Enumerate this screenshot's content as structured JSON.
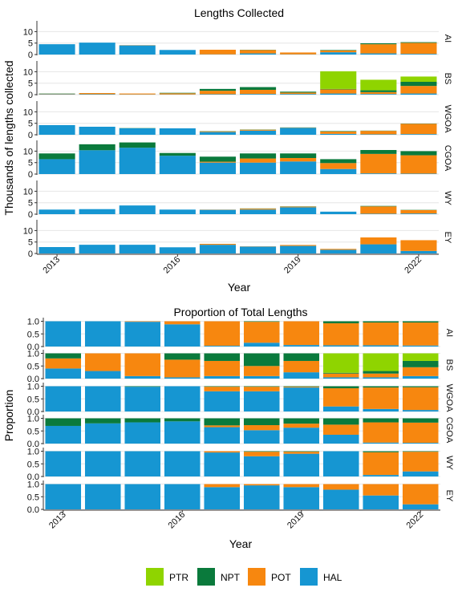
{
  "legend": {
    "items": [
      {
        "label": "PTR",
        "color": "#8fd400"
      },
      {
        "label": "NPT",
        "color": "#0a7a3c"
      },
      {
        "label": "POT",
        "color": "#f7870f"
      },
      {
        "label": "HAL",
        "color": "#1696d2"
      }
    ]
  },
  "chart_data": [
    {
      "type": "bar",
      "stacked": true,
      "title": "Lengths Collected",
      "ylabel": "Thousands of lengths collected",
      "xlabel": "Year",
      "years": [
        2013,
        2014,
        2015,
        2016,
        2017,
        2018,
        2019,
        2020,
        2021,
        2022
      ],
      "x_tick_labels": [
        "2013",
        "2016",
        "2019",
        "2022"
      ],
      "series_order": [
        "HAL",
        "POT",
        "NPT",
        "PTR"
      ],
      "facets": [
        {
          "name": "AI",
          "yticks": [
            0,
            5,
            10
          ],
          "ylim": [
            0,
            14
          ],
          "HAL": [
            4.5,
            5.2,
            4.0,
            2.0,
            0.1,
            0.5,
            0.1,
            1.0,
            0.5,
            0.3
          ],
          "POT": [
            0,
            0,
            0.1,
            0,
            2.0,
            1.5,
            0.8,
            0.8,
            4.0,
            4.8
          ],
          "NPT": [
            0,
            0,
            0,
            0,
            0,
            0.1,
            0,
            0.2,
            0.4,
            0.3
          ],
          "PTR": [
            0,
            0,
            0,
            0,
            0,
            0,
            0,
            0,
            0,
            0
          ]
        },
        {
          "name": "BS",
          "yticks": [
            0,
            5,
            10
          ],
          "ylim": [
            0,
            14
          ],
          "HAL": [
            0.2,
            0.2,
            0.1,
            0.1,
            0.2,
            0.3,
            0.3,
            0.5,
            0.3,
            0.5
          ],
          "POT": [
            0.2,
            0.5,
            0.4,
            0.5,
            1.5,
            1.8,
            0.6,
            1.8,
            0.8,
            3.3
          ],
          "NPT": [
            0.1,
            0,
            0,
            0.2,
            0.8,
            1.2,
            0.4,
            0.2,
            0.8,
            1.8
          ],
          "PTR": [
            0,
            0,
            0,
            0,
            0,
            0,
            0,
            7.7,
            4.6,
            2.3
          ]
        },
        {
          "name": "WGOA",
          "yticks": [
            0,
            5,
            10
          ],
          "ylim": [
            0,
            14
          ],
          "HAL": [
            4.2,
            3.5,
            2.8,
            2.8,
            1.2,
            1.8,
            3.0,
            0.4,
            0.2,
            0.3
          ],
          "POT": [
            0,
            0,
            0,
            0,
            0.3,
            0.4,
            0.1,
            1.0,
            1.5,
            4.5
          ],
          "NPT": [
            0,
            0,
            0.1,
            0,
            0.1,
            0.1,
            0.1,
            0.2,
            0.1,
            0.1
          ],
          "PTR": [
            0,
            0,
            0,
            0,
            0,
            0,
            0,
            0,
            0,
            0
          ]
        },
        {
          "name": "CGOA",
          "yticks": [
            0,
            5,
            10
          ],
          "ylim": [
            0,
            14
          ],
          "HAL": [
            6.5,
            10.4,
            11.5,
            8.0,
            5.0,
            5.0,
            5.5,
            2.2,
            0.3,
            0.2
          ],
          "POT": [
            0,
            0,
            0,
            0,
            0.4,
            1.8,
            1.5,
            2.6,
            8.5,
            8.0
          ],
          "NPT": [
            2.5,
            2.6,
            2.3,
            1.2,
            2.2,
            2.2,
            2.0,
            1.7,
            1.7,
            1.8
          ],
          "PTR": [
            0,
            0,
            0,
            0,
            0,
            0,
            0,
            0,
            0,
            0
          ]
        },
        {
          "name": "WY",
          "yticks": [
            0,
            5,
            10
          ],
          "ylim": [
            0,
            14
          ],
          "HAL": [
            2.0,
            2.2,
            3.8,
            2.0,
            1.9,
            2.0,
            3.0,
            1.1,
            0.2,
            0.3
          ],
          "POT": [
            0,
            0,
            0,
            0,
            0.1,
            0.4,
            0.3,
            0,
            3.2,
            1.5
          ],
          "NPT": [
            0,
            0,
            0,
            0,
            0,
            0.1,
            0.1,
            0,
            0.2,
            0.1
          ],
          "PTR": [
            0,
            0,
            0,
            0,
            0,
            0,
            0,
            0,
            0,
            0
          ]
        },
        {
          "name": "EY",
          "yticks": [
            0,
            5,
            10
          ],
          "ylim": [
            0,
            14
          ],
          "HAL": [
            2.8,
            3.8,
            3.8,
            2.7,
            3.8,
            3.0,
            3.3,
            1.6,
            4.0,
            1.1
          ],
          "POT": [
            0,
            0,
            0,
            0,
            0.4,
            0.1,
            0.4,
            0.4,
            3.0,
            4.7
          ],
          "NPT": [
            0,
            0,
            0,
            0,
            0,
            0,
            0,
            0,
            0,
            0
          ],
          "PTR": [
            0,
            0,
            0,
            0,
            0,
            0,
            0,
            0,
            0,
            0
          ]
        }
      ]
    },
    {
      "type": "bar",
      "stacked": true,
      "title": "Proportion of Total Lengths",
      "ylabel": "Proportion",
      "xlabel": "Year",
      "years": [
        2013,
        2014,
        2015,
        2016,
        2017,
        2018,
        2019,
        2020,
        2021,
        2022
      ],
      "x_tick_labels": [
        "2013",
        "2016",
        "2019",
        "2022"
      ],
      "series_order": [
        "HAL",
        "POT",
        "NPT",
        "PTR"
      ],
      "facets": [
        {
          "name": "AI",
          "yticks": [
            0.0,
            0.5,
            1.0
          ],
          "ylim": [
            0,
            1.08
          ],
          "HAL": [
            1.0,
            1.0,
            0.98,
            0.88,
            0.03,
            0.15,
            0.06,
            0.05,
            0.05,
            0.04
          ],
          "POT": [
            0,
            0,
            0.02,
            0.12,
            0.97,
            0.83,
            0.94,
            0.87,
            0.9,
            0.91
          ],
          "NPT": [
            0,
            0,
            0,
            0,
            0,
            0.02,
            0,
            0.08,
            0.05,
            0.05
          ],
          "PTR": [
            0,
            0,
            0,
            0,
            0,
            0,
            0,
            0,
            0,
            0
          ]
        },
        {
          "name": "BS",
          "yticks": [
            0.0,
            0.5,
            1.0
          ],
          "ylim": [
            0,
            1.08
          ],
          "HAL": [
            0.4,
            0.3,
            0.1,
            0.05,
            0.1,
            0.1,
            0.25,
            0.05,
            0.05,
            0.1
          ],
          "POT": [
            0.4,
            0.7,
            0.9,
            0.7,
            0.6,
            0.4,
            0.45,
            0.15,
            0.15,
            0.35
          ],
          "NPT": [
            0.2,
            0,
            0,
            0.25,
            0.3,
            0.5,
            0.3,
            0.03,
            0.1,
            0.25
          ],
          "PTR": [
            0,
            0,
            0,
            0,
            0,
            0,
            0,
            0.77,
            0.7,
            0.3
          ]
        },
        {
          "name": "WGOA",
          "yticks": [
            0.0,
            0.5,
            1.0
          ],
          "ylim": [
            0,
            1.08
          ],
          "HAL": [
            1.0,
            1.0,
            0.98,
            1.0,
            0.8,
            0.8,
            0.95,
            0.2,
            0.1,
            0.06
          ],
          "POT": [
            0,
            0,
            0,
            0,
            0.18,
            0.18,
            0.03,
            0.72,
            0.85,
            0.9
          ],
          "NPT": [
            0,
            0,
            0.02,
            0,
            0.02,
            0.02,
            0.02,
            0.08,
            0.05,
            0.04
          ],
          "PTR": [
            0,
            0,
            0,
            0,
            0,
            0,
            0,
            0,
            0,
            0
          ]
        },
        {
          "name": "CGOA",
          "yticks": [
            0.0,
            0.5,
            1.0
          ],
          "ylim": [
            0,
            1.08
          ],
          "HAL": [
            0.7,
            0.8,
            0.84,
            0.88,
            0.65,
            0.53,
            0.63,
            0.35,
            0.04,
            0.03
          ],
          "POT": [
            0,
            0,
            0,
            0,
            0.07,
            0.2,
            0.16,
            0.4,
            0.8,
            0.8
          ],
          "NPT": [
            0.3,
            0.2,
            0.16,
            0.12,
            0.28,
            0.27,
            0.21,
            0.25,
            0.16,
            0.17
          ],
          "PTR": [
            0,
            0,
            0,
            0,
            0,
            0,
            0,
            0,
            0,
            0
          ]
        },
        {
          "name": "WY",
          "yticks": [
            0.0,
            0.5,
            1.0
          ],
          "ylim": [
            0,
            1.08
          ],
          "HAL": [
            1.0,
            1.0,
            1.0,
            1.0,
            0.95,
            0.8,
            0.9,
            1.0,
            0.06,
            0.2
          ],
          "POT": [
            0,
            0,
            0,
            0,
            0.05,
            0.18,
            0.08,
            0,
            0.9,
            0.78
          ],
          "NPT": [
            0,
            0,
            0,
            0,
            0,
            0.02,
            0.02,
            0,
            0.04,
            0.02
          ],
          "PTR": [
            0,
            0,
            0,
            0,
            0,
            0,
            0,
            0,
            0,
            0
          ]
        },
        {
          "name": "EY",
          "yticks": [
            0.0,
            0.5,
            1.0
          ],
          "ylim": [
            0,
            1.08
          ],
          "HAL": [
            1.0,
            1.0,
            1.0,
            1.0,
            0.88,
            0.95,
            0.88,
            0.78,
            0.55,
            0.2
          ],
          "POT": [
            0,
            0,
            0,
            0,
            0.12,
            0.05,
            0.12,
            0.22,
            0.45,
            0.8
          ],
          "NPT": [
            0,
            0,
            0,
            0,
            0,
            0,
            0,
            0,
            0,
            0
          ],
          "PTR": [
            0,
            0,
            0,
            0,
            0,
            0,
            0,
            0,
            0,
            0
          ]
        }
      ]
    }
  ]
}
